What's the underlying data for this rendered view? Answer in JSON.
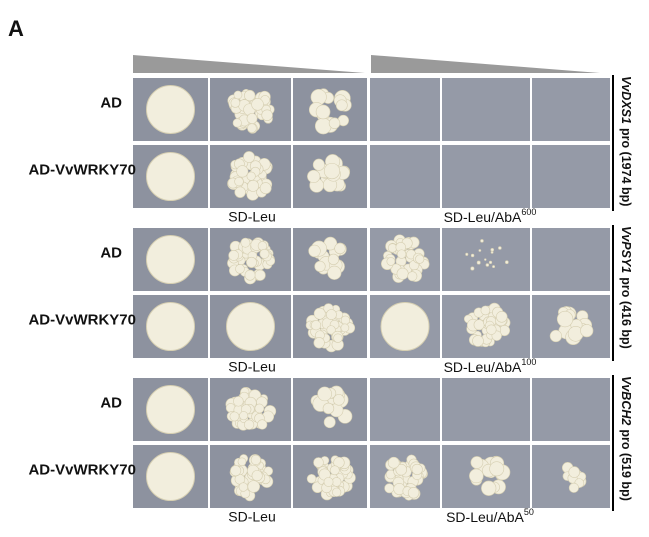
{
  "panel_label": "A",
  "panels": [
    {
      "rows": [
        "AD",
        "AD-VvWRKY70"
      ],
      "left_medium": "SD-Leu",
      "right_medium": "SD-Leu/AbA",
      "aba_concentration": "600",
      "promoter_gene": "VvDXS1",
      "promoter_text": "pro (1974 bp)"
    },
    {
      "rows": [
        "AD",
        "AD-VvWRKY70"
      ],
      "left_medium": "SD-Leu",
      "right_medium": "SD-Leu/AbA",
      "aba_concentration": "100",
      "promoter_gene": "VvPSY1",
      "promoter_text": "pro (416 bp)"
    },
    {
      "rows": [
        "AD",
        "AD-VvWRKY70"
      ],
      "left_medium": "SD-Leu",
      "right_medium": "SD-Leu/AbA",
      "aba_concentration": "50",
      "promoter_gene": "VvBCH2",
      "promoter_text": "pro (519 bp)"
    }
  ]
}
